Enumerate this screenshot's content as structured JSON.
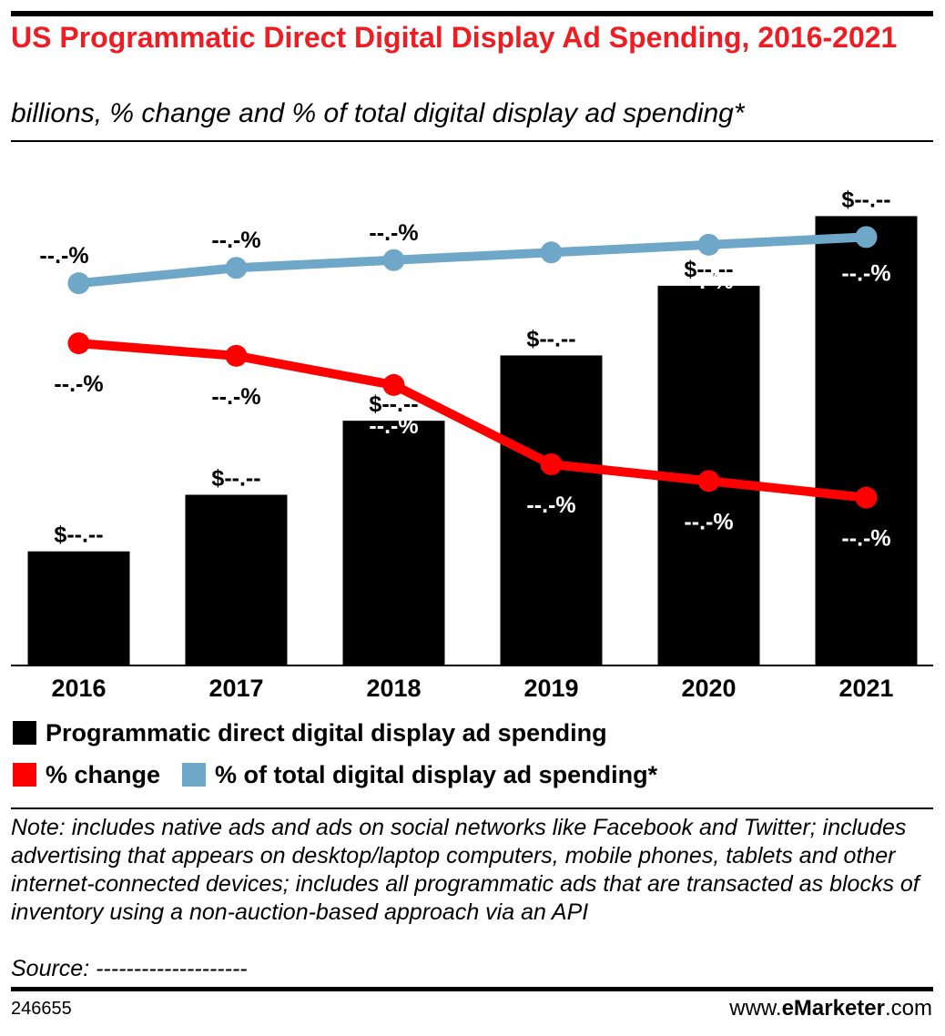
{
  "header": {
    "title": "US Programmatic Direct Digital Display Ad Spending, 2016-2021",
    "subtitle": "billions, % change and % of total digital display ad spending*"
  },
  "legend": {
    "spending": "Programmatic direct digital display ad spending",
    "change": "% change",
    "share": "% of total digital display ad spending*"
  },
  "colors": {
    "title": "#ee1d23",
    "bars": "#000000",
    "change": "#ff0000",
    "share": "#6fa7c9"
  },
  "chart_data": {
    "type": "bar",
    "categories": [
      "2016",
      "2017",
      "2018",
      "2019",
      "2020",
      "2021"
    ],
    "values": [
      5.2,
      7.8,
      11.2,
      14.2,
      17.4,
      20.6
    ],
    "value_labels": [
      "$--.--",
      "$--.--",
      "$--.--",
      "$--.--",
      "$--.--",
      "$--.--"
    ],
    "ylim": [
      0,
      23
    ],
    "y_axis_shown": false,
    "grid": false,
    "legend_placement": "bottom",
    "series": [
      {
        "name": "% change",
        "type": "line",
        "values": [
          77,
          74,
          67,
          48,
          44,
          40
        ],
        "labels": [
          "--.-%",
          "--.-%",
          "--.-%",
          "--.-%",
          "--.-%",
          "--.-%"
        ],
        "ylim": [
          0,
          120
        ]
      },
      {
        "name": "% of total digital display ad spending*",
        "type": "line",
        "values": [
          59,
          63,
          65,
          67,
          69,
          71
        ],
        "labels": [
          "--.-%",
          "--.-%",
          "--.-%",
          "--.-%",
          "--.-%",
          "--.-%"
        ],
        "ylim": [
          -40,
          90
        ]
      }
    ]
  },
  "footer": {
    "note": "Note: includes native ads and ads on social networks like Facebook and Twitter; includes advertising that appears on desktop/laptop computers, mobile phones, tablets and other internet-connected devices; includes all programmatic ads that are transacted as blocks of inventory using a non-auction-based approach via an API",
    "source": "Source: --------------------",
    "chart_id": "246655",
    "brand_prefix": "www.",
    "brand_name": "eMarketer",
    "brand_suffix": ".com"
  }
}
